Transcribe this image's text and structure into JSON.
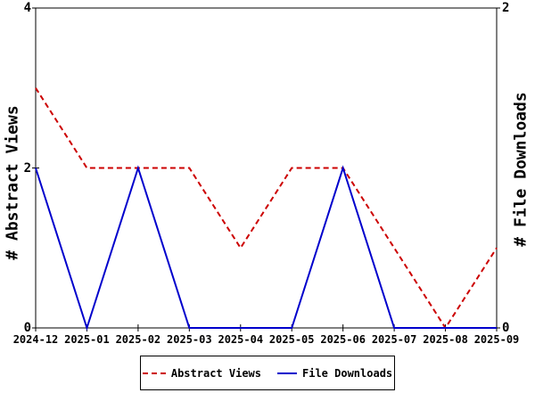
{
  "chart_data": {
    "type": "line",
    "categories": [
      "2024-12",
      "2025-01",
      "2025-02",
      "2025-03",
      "2025-04",
      "2025-05",
      "2025-06",
      "2025-07",
      "2025-08",
      "2025-09"
    ],
    "series": [
      {
        "name": "Abstract Views",
        "axis": "left",
        "style": "dashed",
        "color": "#cc0000",
        "values": [
          3,
          2,
          2,
          2,
          1,
          2,
          2,
          1,
          0,
          1
        ]
      },
      {
        "name": "File Downloads",
        "axis": "right",
        "style": "solid",
        "color": "#0000cc",
        "values": [
          1,
          0,
          1,
          0,
          0,
          0,
          1,
          0,
          0,
          0
        ]
      }
    ],
    "left_axis": {
      "label": "# Abstract Views",
      "range": [
        0,
        4
      ],
      "ticks": [
        0,
        2,
        4
      ]
    },
    "right_axis": {
      "label": "# File Downloads",
      "range": [
        0,
        2
      ],
      "ticks": [
        0,
        2
      ]
    },
    "legend": {
      "position": "bottom",
      "entries": [
        "Abstract Views",
        "File Downloads"
      ]
    },
    "grid": false,
    "axis_color": "#000000",
    "background_color": "#ffffff"
  }
}
